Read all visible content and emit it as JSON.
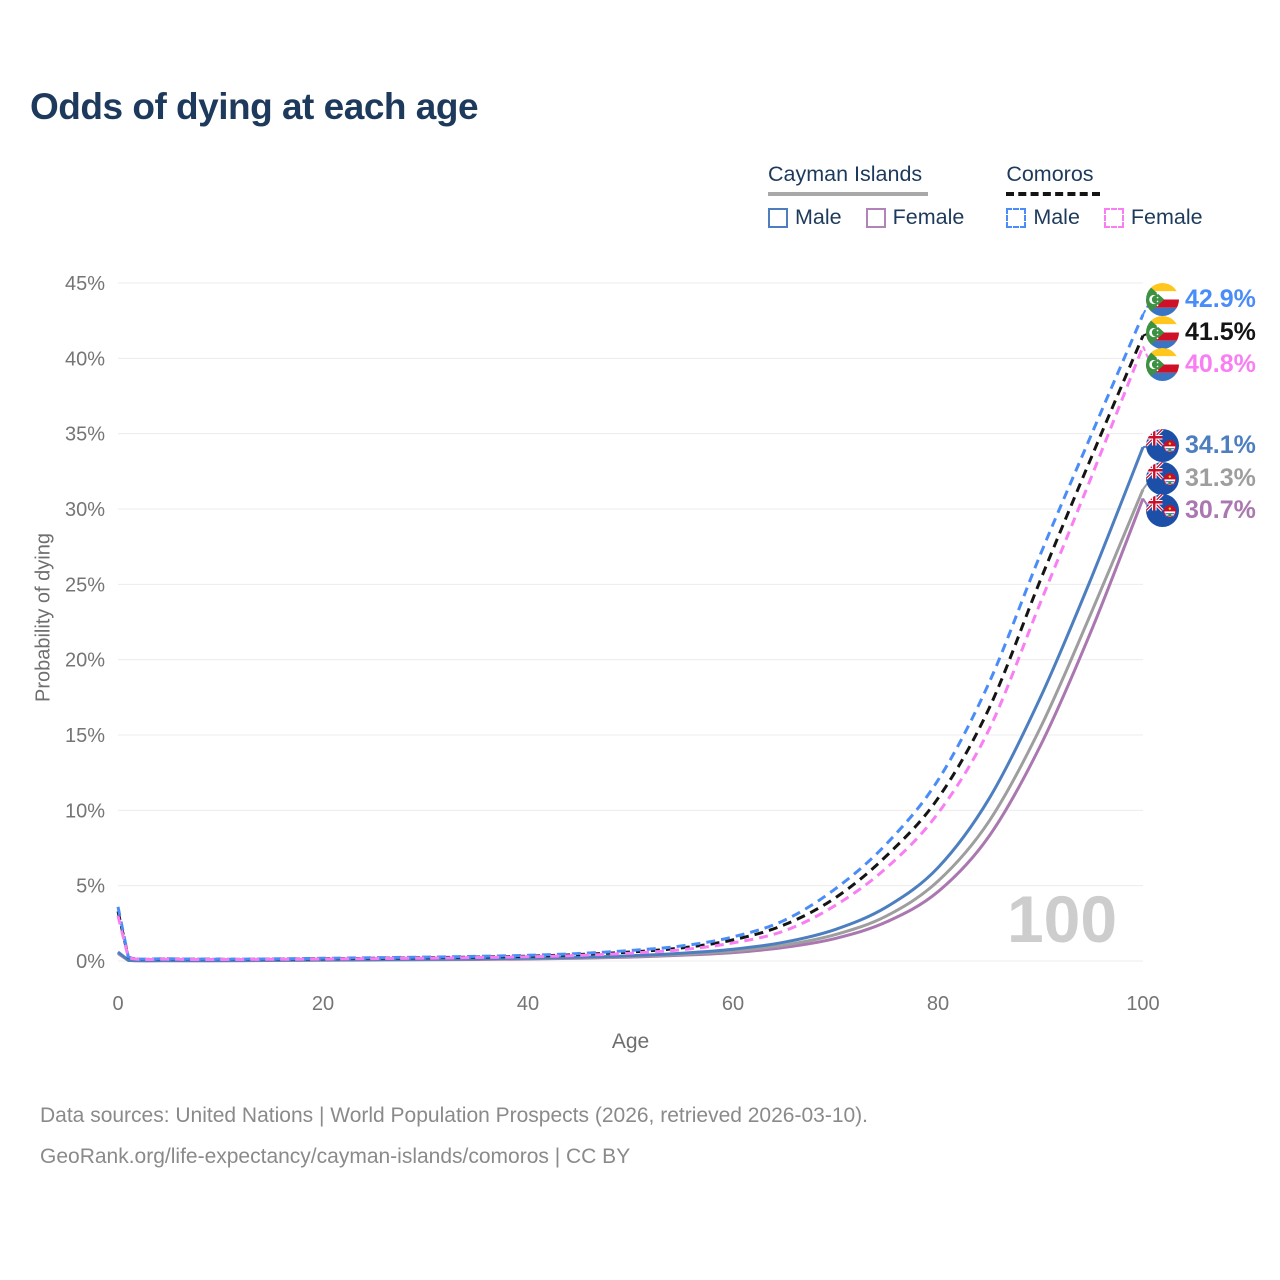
{
  "title": "Odds of dying at each age",
  "legend": {
    "groups": [
      {
        "country": "Cayman Islands",
        "underline_style": "solid",
        "underline_color": "#a8a8a8",
        "items": [
          {
            "label": "Male",
            "color": "#4d7fc0",
            "style": "solid"
          },
          {
            "label": "Female",
            "color": "#b183b8",
            "style": "solid"
          }
        ]
      },
      {
        "country": "Comoros",
        "underline_style": "dashed",
        "underline_color": "#141414",
        "items": [
          {
            "label": "Male",
            "color": "#4b8df8",
            "style": "dashed"
          },
          {
            "label": "Female",
            "color": "#f97ef3",
            "style": "dashed"
          }
        ]
      }
    ]
  },
  "chart_data": {
    "type": "line",
    "title": "Odds of dying at each age",
    "xlabel": "Age",
    "ylabel": "Probability of dying",
    "xlim": [
      0,
      100
    ],
    "ylim": [
      0,
      45
    ],
    "x_ticks": [
      0,
      20,
      40,
      60,
      80,
      100
    ],
    "y_ticks": [
      0,
      5,
      10,
      15,
      20,
      25,
      30,
      35,
      40,
      45
    ],
    "y_tick_labels": [
      "0%",
      "5%",
      "10%",
      "15%",
      "20%",
      "25%",
      "30%",
      "35%",
      "40%",
      "45%"
    ],
    "grid": "horizontal",
    "legend_position": "top-right",
    "watermark": "100",
    "ages": [
      0,
      1,
      5,
      10,
      15,
      20,
      25,
      30,
      35,
      40,
      45,
      50,
      55,
      60,
      65,
      70,
      75,
      80,
      85,
      90,
      95,
      100
    ],
    "series": [
      {
        "id": "comoros-male",
        "country": "Comoros",
        "sex": "Male",
        "style": "dashed",
        "color": "#4b8df8",
        "flag": "comoros",
        "end_label": "42.9%",
        "values": [
          3.6,
          0.28,
          0.15,
          0.12,
          0.14,
          0.18,
          0.22,
          0.26,
          0.31,
          0.38,
          0.5,
          0.7,
          1.0,
          1.6,
          2.7,
          4.8,
          7.8,
          12.0,
          18.5,
          27.0,
          35.0,
          42.9
        ]
      },
      {
        "id": "comoros-both",
        "country": "Comoros",
        "sex": "Both sexes",
        "style": "dashed",
        "color": "#141414",
        "flag": "comoros",
        "end_label": "41.5%",
        "values": [
          3.3,
          0.26,
          0.13,
          0.11,
          0.12,
          0.15,
          0.18,
          0.22,
          0.26,
          0.32,
          0.43,
          0.6,
          0.87,
          1.4,
          2.4,
          4.2,
          7.0,
          10.8,
          16.8,
          25.3,
          33.5,
          41.5
        ]
      },
      {
        "id": "comoros-female",
        "country": "Comoros",
        "sex": "Female",
        "style": "dashed",
        "color": "#f97ef3",
        "flag": "comoros",
        "end_label": "40.8%",
        "values": [
          3.0,
          0.24,
          0.12,
          0.1,
          0.11,
          0.13,
          0.16,
          0.19,
          0.23,
          0.28,
          0.37,
          0.52,
          0.75,
          1.2,
          2.0,
          3.7,
          6.2,
          9.8,
          15.4,
          23.8,
          32.2,
          40.8
        ]
      },
      {
        "id": "cayman-male",
        "country": "Cayman Islands",
        "sex": "Male",
        "style": "solid",
        "color": "#4d7fc0",
        "flag": "cayman",
        "end_label": "34.1%",
        "values": [
          0.6,
          0.05,
          0.03,
          0.03,
          0.05,
          0.08,
          0.1,
          0.12,
          0.15,
          0.19,
          0.25,
          0.35,
          0.52,
          0.78,
          1.25,
          2.1,
          3.6,
          6.2,
          10.8,
          17.5,
          25.5,
          34.1
        ]
      },
      {
        "id": "cayman-both",
        "country": "Cayman Islands",
        "sex": "Both sexes",
        "style": "solid",
        "color": "#9e9e9e",
        "flag": "cayman",
        "end_label": "31.3%",
        "values": [
          0.55,
          0.045,
          0.025,
          0.025,
          0.04,
          0.06,
          0.08,
          0.1,
          0.13,
          0.16,
          0.21,
          0.3,
          0.44,
          0.66,
          1.05,
          1.75,
          3.0,
          5.3,
          9.3,
          15.5,
          23.2,
          31.3
        ]
      },
      {
        "id": "cayman-female",
        "country": "Cayman Islands",
        "sex": "Female",
        "style": "solid",
        "color": "#aa77b0",
        "flag": "cayman",
        "end_label": "30.7%",
        "values": [
          0.5,
          0.04,
          0.02,
          0.02,
          0.03,
          0.05,
          0.06,
          0.08,
          0.1,
          0.13,
          0.18,
          0.26,
          0.38,
          0.56,
          0.9,
          1.5,
          2.6,
          4.6,
          8.3,
          14.3,
          22.0,
          30.7
        ]
      }
    ]
  },
  "footer": {
    "line1": "Data sources: United Nations | World Population Prospects (2026, retrieved 2026-03-10).",
    "line2": "GeoRank.org/life-expectancy/cayman-islands/comoros | CC BY"
  }
}
